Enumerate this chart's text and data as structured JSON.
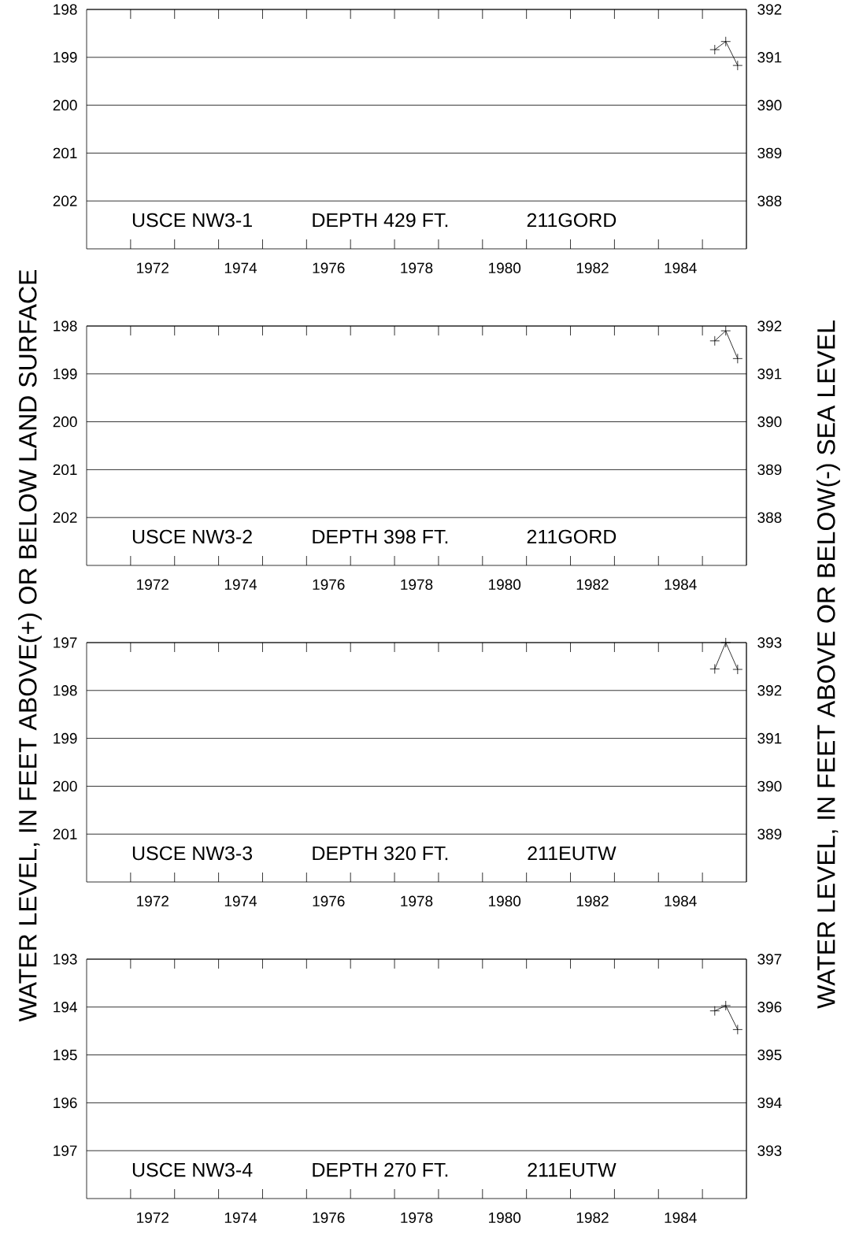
{
  "chart_data": [
    {
      "type": "line",
      "ylabel": "WATER LEVEL, IN FEET ABOVE(+) OR BELOW LAND SURFACE",
      "y2label": "WATER LEVEL, IN FEET ABOVE OR BELOW(-) SEA LEVEL",
      "annotations": [
        "USCE NW3-1",
        "DEPTH 429 FT.",
        "211GORD"
      ],
      "series": [
        {
          "color": "#000000",
          "x": [
            1985.28,
            1985.53,
            1985.8
          ],
          "values": [
            198.84,
            198.67,
            199.17
          ]
        }
      ],
      "xlim": [
        1971,
        1986
      ],
      "ylim": [
        203,
        198
      ],
      "y2lim": [
        387,
        392
      ],
      "xticks": [
        {
          "value": 1972,
          "label": null
        },
        {
          "value": 1973,
          "label": null
        },
        {
          "value": 1974,
          "label": null
        },
        {
          "value": 1975,
          "label": null
        },
        {
          "value": 1976,
          "label": null
        },
        {
          "value": 1977,
          "label": null
        },
        {
          "value": 1978,
          "label": null
        },
        {
          "value": 1979,
          "label": null
        },
        {
          "value": 1980,
          "label": null
        },
        {
          "value": 1981,
          "label": null
        },
        {
          "value": 1982,
          "label": null
        },
        {
          "value": 1983,
          "label": null
        },
        {
          "value": 1984,
          "label": null
        },
        {
          "value": 1985,
          "label": null
        },
        {
          "value": 1972.5,
          "label": "1972"
        },
        {
          "value": 1974.5,
          "label": "1974"
        },
        {
          "value": 1976.5,
          "label": "1976"
        },
        {
          "value": 1978.5,
          "label": "1978"
        },
        {
          "value": 1980.5,
          "label": "1980"
        },
        {
          "value": 1982.5,
          "label": "1982"
        },
        {
          "value": 1984.5,
          "label": "1984"
        }
      ],
      "yticks": [
        198,
        199,
        200,
        201,
        202
      ],
      "y2ticks": [
        388,
        389,
        390,
        391,
        392
      ],
      "grid": "y",
      "marker": "cross",
      "line_style": "solid"
    },
    {
      "type": "line",
      "annotations": [
        "USCE NW3-2",
        "DEPTH 398 FT.",
        "211GORD"
      ],
      "series": [
        {
          "color": "#000000",
          "x": [
            1985.28,
            1985.53,
            1985.8
          ],
          "values": [
            198.31,
            198.1,
            198.68
          ]
        }
      ],
      "xlim": [
        1971,
        1986
      ],
      "ylim": [
        203,
        198
      ],
      "y2lim": [
        387,
        392
      ],
      "xticks": [
        {
          "value": 1972,
          "label": null
        },
        {
          "value": 1973,
          "label": null
        },
        {
          "value": 1974,
          "label": null
        },
        {
          "value": 1975,
          "label": null
        },
        {
          "value": 1976,
          "label": null
        },
        {
          "value": 1977,
          "label": null
        },
        {
          "value": 1978,
          "label": null
        },
        {
          "value": 1979,
          "label": null
        },
        {
          "value": 1980,
          "label": null
        },
        {
          "value": 1981,
          "label": null
        },
        {
          "value": 1982,
          "label": null
        },
        {
          "value": 1983,
          "label": null
        },
        {
          "value": 1984,
          "label": null
        },
        {
          "value": 1985,
          "label": null
        },
        {
          "value": 1972.5,
          "label": "1972"
        },
        {
          "value": 1974.5,
          "label": "1974"
        },
        {
          "value": 1976.5,
          "label": "1976"
        },
        {
          "value": 1978.5,
          "label": "1978"
        },
        {
          "value": 1980.5,
          "label": "1980"
        },
        {
          "value": 1982.5,
          "label": "1982"
        },
        {
          "value": 1984.5,
          "label": "1984"
        }
      ],
      "yticks": [
        198,
        199,
        200,
        201,
        202
      ],
      "y2ticks": [
        388,
        389,
        390,
        391,
        392
      ],
      "grid": "y",
      "marker": "cross",
      "line_style": "solid"
    },
    {
      "type": "line",
      "annotations": [
        "USCE NW3-3",
        "DEPTH 320 FT.",
        "211EUTW"
      ],
      "series": [
        {
          "color": "#000000",
          "x": [
            1985.28,
            1985.53,
            1985.8
          ],
          "values": [
            197.55,
            197.0,
            197.56
          ]
        }
      ],
      "xlim": [
        1971,
        1986
      ],
      "ylim": [
        202,
        197
      ],
      "y2lim": [
        388,
        393
      ],
      "xticks": [
        {
          "value": 1972,
          "label": null
        },
        {
          "value": 1973,
          "label": null
        },
        {
          "value": 1974,
          "label": null
        },
        {
          "value": 1975,
          "label": null
        },
        {
          "value": 1976,
          "label": null
        },
        {
          "value": 1977,
          "label": null
        },
        {
          "value": 1978,
          "label": null
        },
        {
          "value": 1979,
          "label": null
        },
        {
          "value": 1980,
          "label": null
        },
        {
          "value": 1981,
          "label": null
        },
        {
          "value": 1982,
          "label": null
        },
        {
          "value": 1983,
          "label": null
        },
        {
          "value": 1984,
          "label": null
        },
        {
          "value": 1985,
          "label": null
        },
        {
          "value": 1972.5,
          "label": "1972"
        },
        {
          "value": 1974.5,
          "label": "1974"
        },
        {
          "value": 1976.5,
          "label": "1976"
        },
        {
          "value": 1978.5,
          "label": "1978"
        },
        {
          "value": 1980.5,
          "label": "1980"
        },
        {
          "value": 1982.5,
          "label": "1982"
        },
        {
          "value": 1984.5,
          "label": "1984"
        }
      ],
      "yticks": [
        197,
        198,
        199,
        200,
        201
      ],
      "y2ticks": [
        389,
        390,
        391,
        392,
        393
      ],
      "grid": "y",
      "marker": "cross",
      "line_style": "solid"
    },
    {
      "type": "line",
      "annotations": [
        "USCE NW3-4",
        "DEPTH 270 FT.",
        "211EUTW"
      ],
      "series": [
        {
          "color": "#000000",
          "x": [
            1985.28,
            1985.53,
            1985.8
          ],
          "values": [
            194.08,
            193.97,
            194.47
          ]
        }
      ],
      "xlim": [
        1971,
        1986
      ],
      "ylim": [
        198,
        193
      ],
      "y2lim": [
        392,
        397
      ],
      "xticks": [
        {
          "value": 1972,
          "label": null
        },
        {
          "value": 1973,
          "label": null
        },
        {
          "value": 1974,
          "label": null
        },
        {
          "value": 1975,
          "label": null
        },
        {
          "value": 1976,
          "label": null
        },
        {
          "value": 1977,
          "label": null
        },
        {
          "value": 1978,
          "label": null
        },
        {
          "value": 1979,
          "label": null
        },
        {
          "value": 1980,
          "label": null
        },
        {
          "value": 1981,
          "label": null
        },
        {
          "value": 1982,
          "label": null
        },
        {
          "value": 1983,
          "label": null
        },
        {
          "value": 1984,
          "label": null
        },
        {
          "value": 1985,
          "label": null
        },
        {
          "value": 1972.5,
          "label": "1972"
        },
        {
          "value": 1974.5,
          "label": "1974"
        },
        {
          "value": 1976.5,
          "label": "1976"
        },
        {
          "value": 1978.5,
          "label": "1978"
        },
        {
          "value": 1980.5,
          "label": "1980"
        },
        {
          "value": 1982.5,
          "label": "1982"
        },
        {
          "value": 1984.5,
          "label": "1984"
        }
      ],
      "yticks": [
        193,
        194,
        195,
        196,
        197
      ],
      "y2ticks": [
        393,
        394,
        395,
        396,
        397
      ],
      "grid": "y",
      "marker": "cross",
      "line_style": "solid"
    }
  ]
}
